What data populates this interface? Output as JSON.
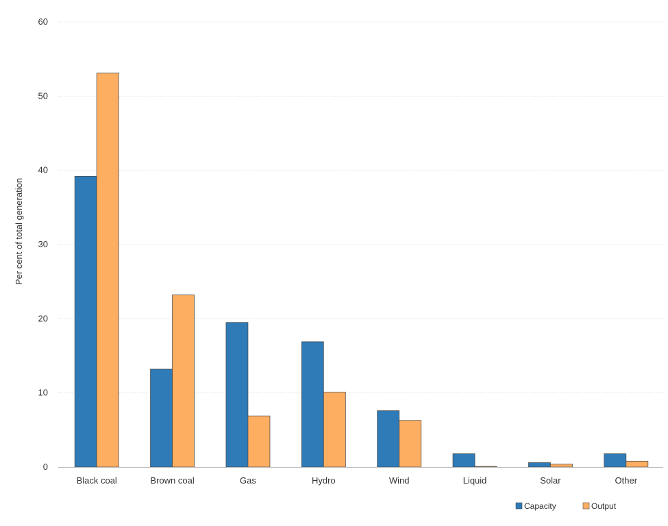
{
  "chart_data": {
    "type": "bar",
    "title": "",
    "xlabel": "",
    "ylabel": "Per cent of total generation",
    "ylim": [
      0,
      60
    ],
    "yticks": [
      0,
      10,
      20,
      30,
      40,
      50,
      60
    ],
    "grid": true,
    "legend_position": "bottom-right",
    "categories": [
      "Black coal",
      "Brown coal",
      "Gas",
      "Hydro",
      "Wind",
      "Liquid",
      "Solar",
      "Other"
    ],
    "series": [
      {
        "name": "Capacity",
        "color": "#2e7bb8",
        "values": [
          39.2,
          13.2,
          19.5,
          16.9,
          7.6,
          1.8,
          0.6,
          1.8
        ]
      },
      {
        "name": "Output",
        "color": "#fdae61",
        "values": [
          53.1,
          23.2,
          6.9,
          10.1,
          6.3,
          0.1,
          0.4,
          0.8
        ]
      }
    ]
  }
}
